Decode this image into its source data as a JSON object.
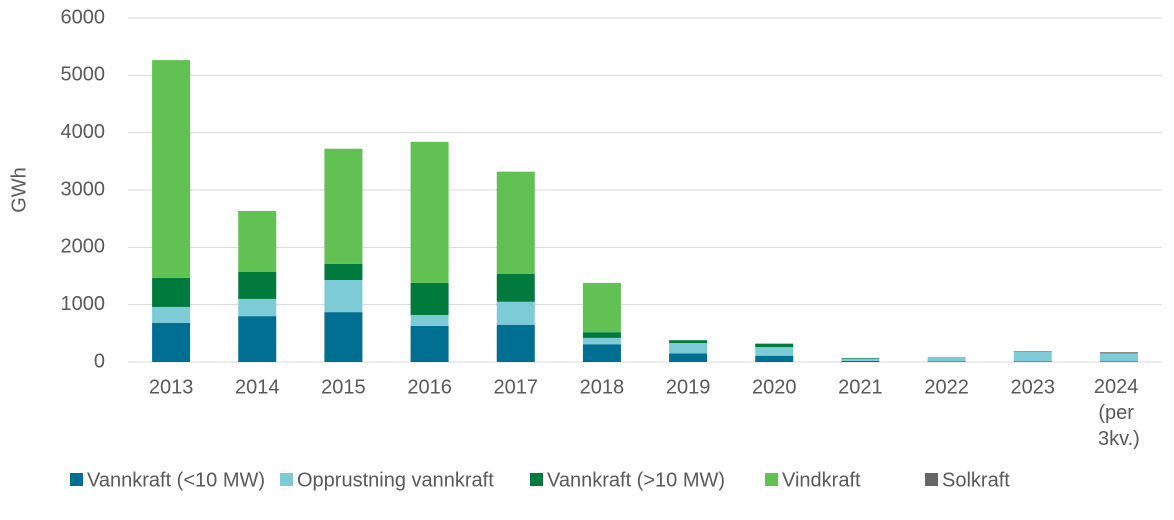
{
  "chart_data": {
    "type": "stacked_bar",
    "y_label": "GWh",
    "categories": [
      "2013",
      "2014",
      "2015",
      "2016",
      "2017",
      "2018",
      "2019",
      "2020",
      "2021",
      "2022",
      "2023",
      "2024 (per 3kv.)"
    ],
    "series": [
      {
        "name": "Vannkraft (<10 MW)",
        "color": "#006f91",
        "values": [
          680,
          800,
          870,
          630,
          650,
          310,
          150,
          110,
          20,
          10,
          10,
          10
        ]
      },
      {
        "name": "Opprustning vannkraft",
        "color": "#7ecbd8",
        "values": [
          280,
          300,
          560,
          190,
          400,
          110,
          180,
          150,
          40,
          80,
          170,
          140
        ]
      },
      {
        "name": "Vannkraft (>10 MW)",
        "color": "#007a3d",
        "values": [
          506,
          470,
          280,
          560,
          485,
          100,
          50,
          60,
          10,
          0,
          0,
          0
        ]
      },
      {
        "name": "Vindkraft",
        "color": "#62c153",
        "values": [
          3800,
          1065,
          2010,
          2460,
          1785,
          860,
          0,
          0,
          0,
          0,
          0,
          0
        ]
      },
      {
        "name": "Solkraft",
        "color": "#666666",
        "values": [
          0,
          0,
          0,
          0,
          0,
          0,
          0,
          0,
          0,
          0,
          10,
          20
        ]
      }
    ],
    "ylim": [
      0,
      6000
    ],
    "yticks": [
      0,
      1000,
      2000,
      3000,
      4000,
      5000,
      6000
    ],
    "grid": true
  }
}
